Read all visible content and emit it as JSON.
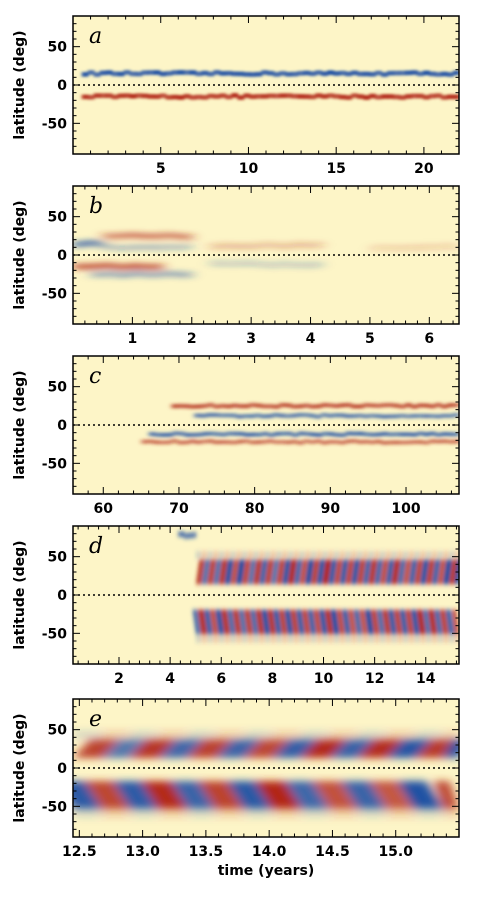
{
  "figure": {
    "xlabel": "time (years)",
    "ylabel": "latitude (deg)",
    "colors": {
      "red": "#b22818",
      "blue": "#1e4fa3",
      "background": "#fdf5c7",
      "axis": "#000000"
    }
  },
  "chart_data": [
    {
      "type": "heatmap",
      "panel": "a",
      "ylabel": "latitude (deg)",
      "xlim": [
        0,
        22
      ],
      "ylim": [
        -90,
        90
      ],
      "xticks": [
        5,
        10,
        15,
        20
      ],
      "yticks": [
        -50,
        0,
        50
      ],
      "zero_line": "dotted",
      "features": [
        {
          "name": "north band",
          "color": "blue",
          "lat": 15,
          "t0": 0.5,
          "t1": 22,
          "amp": 1.0,
          "width": 6
        },
        {
          "name": "south band",
          "color": "red",
          "lat": -15,
          "t0": 0.5,
          "t1": 22,
          "amp": 1.0,
          "width": 6
        }
      ]
    },
    {
      "type": "heatmap",
      "panel": "b",
      "ylabel": "latitude (deg)",
      "xlim": [
        0,
        6.5
      ],
      "ylim": [
        -90,
        90
      ],
      "xticks": [
        1,
        2,
        3,
        4,
        5,
        6
      ],
      "yticks": [
        -50,
        0,
        50
      ],
      "zero_line": "dotted",
      "features": [
        {
          "name": "north blue early",
          "color": "blue",
          "lat": 15,
          "t0": 0,
          "t1": 0.5,
          "amp": 1.0,
          "width": 6
        },
        {
          "name": "north red",
          "color": "red",
          "lat": 25,
          "t0": 0.5,
          "t1": 2.0,
          "amp": 0.8,
          "width": 6
        },
        {
          "name": "north blue",
          "color": "blue",
          "lat": 10,
          "t0": 0.5,
          "t1": 2.0,
          "amp": 0.5,
          "width": 5
        },
        {
          "name": "south red early",
          "color": "red",
          "lat": -15,
          "t0": 0,
          "t1": 1.5,
          "amp": 1.0,
          "width": 6
        },
        {
          "name": "south blue",
          "color": "blue",
          "lat": -25,
          "t0": 0.3,
          "t1": 2.0,
          "amp": 0.6,
          "width": 6
        },
        {
          "name": "north red weak",
          "color": "red",
          "lat": 12,
          "t0": 2.3,
          "t1": 4.2,
          "amp": 0.35,
          "width": 6
        },
        {
          "name": "south blue weak",
          "color": "blue",
          "lat": -12,
          "t0": 2.3,
          "t1": 4.2,
          "amp": 0.3,
          "width": 6
        },
        {
          "name": "north red faint",
          "color": "red",
          "lat": 10,
          "t0": 5.0,
          "t1": 6.5,
          "amp": 0.2,
          "width": 6
        }
      ]
    },
    {
      "type": "heatmap",
      "panel": "c",
      "ylabel": "latitude (deg)",
      "xlim": [
        56,
        107
      ],
      "ylim": [
        -90,
        90
      ],
      "xticks": [
        60,
        70,
        80,
        90,
        100
      ],
      "yticks": [
        -50,
        0,
        50
      ],
      "zero_line": "dotted",
      "features": [
        {
          "name": "north red",
          "color": "red",
          "lat": 25,
          "t0": 69,
          "t1": 107,
          "amp": 0.9,
          "width": 5
        },
        {
          "name": "north blue",
          "color": "blue",
          "lat": 12,
          "t0": 72,
          "t1": 107,
          "amp": 0.8,
          "width": 5
        },
        {
          "name": "south blue",
          "color": "blue",
          "lat": -12,
          "t0": 66,
          "t1": 107,
          "amp": 0.9,
          "width": 5
        },
        {
          "name": "south red",
          "color": "red",
          "lat": -22,
          "t0": 65,
          "t1": 107,
          "amp": 0.7,
          "width": 5
        }
      ]
    },
    {
      "type": "heatmap",
      "panel": "d",
      "ylabel": "latitude (deg)",
      "xlim": [
        0.2,
        15.3
      ],
      "ylim": [
        -90,
        90
      ],
      "xticks": [
        2,
        4,
        6,
        8,
        10,
        12,
        14
      ],
      "yticks": [
        -50,
        0,
        50
      ],
      "zero_line": "dotted",
      "features": [
        {
          "name": "north oscillation",
          "lat": 30,
          "t0": 5.0,
          "t1": 15.3,
          "amp": 1.0,
          "width": 16,
          "period": 0.45
        },
        {
          "name": "south oscillation",
          "lat": -35,
          "t0": 5.0,
          "t1": 15.3,
          "amp": 1.0,
          "width": 16,
          "period": 0.45
        },
        {
          "name": "polar blob",
          "color": "blue",
          "lat": 78,
          "t0": 4.3,
          "t1": 5.0,
          "amp": 1.0,
          "width": 6
        }
      ]
    },
    {
      "type": "heatmap",
      "panel": "e",
      "ylabel": "latitude (deg)",
      "xlabel": "time (years)",
      "xlim": [
        12.45,
        15.5
      ],
      "ylim": [
        -90,
        90
      ],
      "xticks": [
        12.5,
        13.0,
        13.5,
        14.0,
        14.5,
        15.0
      ],
      "yticks": [
        -50,
        0,
        50
      ],
      "xtick_labels": [
        "12.5",
        "13.0",
        "13.5",
        "14.0",
        "14.5",
        "15.0"
      ],
      "zero_line": "dotted",
      "features": [
        {
          "name": "north oscillation",
          "lat": 25,
          "t0": 12.45,
          "t1": 15.5,
          "amp": 1.0,
          "width": 12,
          "period": 0.45
        },
        {
          "name": "south oscillation",
          "lat": -35,
          "t0": 12.45,
          "t1": 15.5,
          "amp": 1.0,
          "width": 18,
          "period": 0.45
        }
      ]
    }
  ]
}
